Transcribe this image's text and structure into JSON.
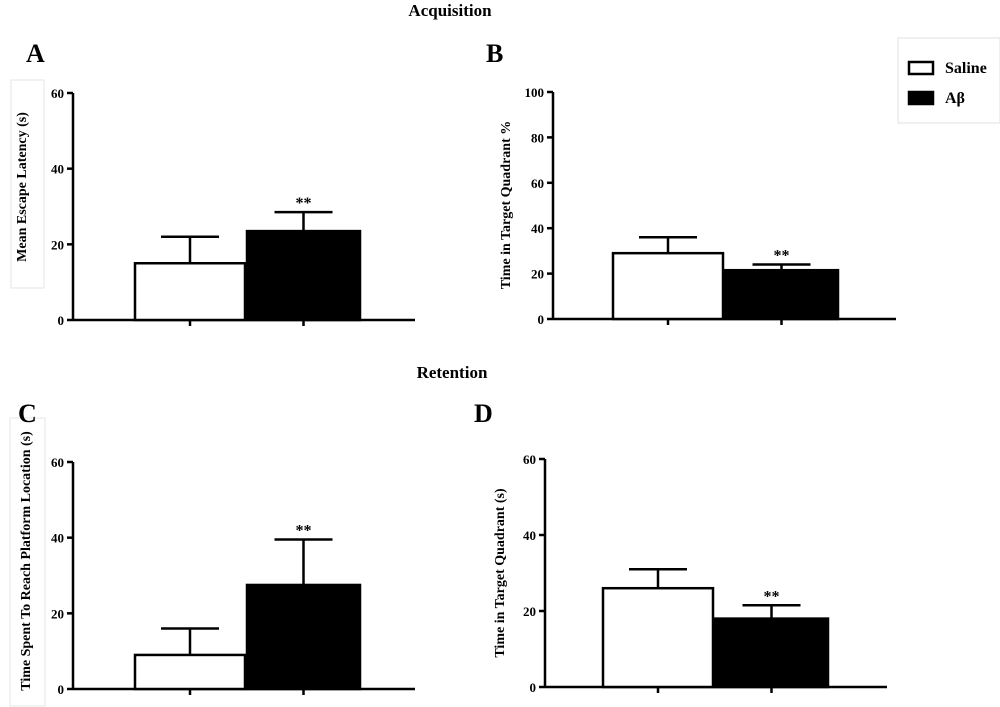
{
  "sections": {
    "acquisition": "Acquisition",
    "retention": "Retention"
  },
  "legend": {
    "items": [
      {
        "label": "Saline",
        "fill": "#ffffff"
      },
      {
        "label": "Aβ",
        "fill": "#000000"
      }
    ]
  },
  "chart_data": [
    {
      "panel": "A",
      "type": "bar",
      "ylabel": "Mean Escape Latency (s)",
      "ylim": [
        0,
        60
      ],
      "yticks": [
        0,
        20,
        40,
        60
      ],
      "series": [
        {
          "name": "Saline",
          "value": 15,
          "error": 7,
          "fill": "#ffffff"
        },
        {
          "name": "Aβ",
          "value": 23.5,
          "error": 5,
          "fill": "#000000",
          "significance": "**"
        }
      ]
    },
    {
      "panel": "B",
      "type": "bar",
      "ylabel": "Time in Target Quadrant %",
      "ylim": [
        0,
        100
      ],
      "yticks": [
        0,
        20,
        40,
        60,
        80,
        100
      ],
      "series": [
        {
          "name": "Saline",
          "value": 29,
          "error": 7,
          "fill": "#ffffff"
        },
        {
          "name": "Aβ",
          "value": 21.5,
          "error": 2.5,
          "fill": "#000000",
          "significance": "**"
        }
      ]
    },
    {
      "panel": "C",
      "type": "bar",
      "ylabel": "Time Spent To Reach Platform Location (s)",
      "ylim": [
        0,
        60
      ],
      "yticks": [
        0,
        20,
        40,
        60
      ],
      "series": [
        {
          "name": "Saline",
          "value": 9,
          "error": 7,
          "fill": "#ffffff"
        },
        {
          "name": "Aβ",
          "value": 27.5,
          "error": 12,
          "fill": "#000000",
          "significance": "**"
        }
      ]
    },
    {
      "panel": "D",
      "type": "bar",
      "ylabel": "Time in Target Quadrant (s)",
      "ylim": [
        0,
        60
      ],
      "yticks": [
        0,
        20,
        40,
        60
      ],
      "series": [
        {
          "name": "Saline",
          "value": 26,
          "error": 5,
          "fill": "#ffffff"
        },
        {
          "name": "Aβ",
          "value": 18,
          "error": 3.5,
          "fill": "#000000",
          "significance": "**"
        }
      ]
    }
  ]
}
